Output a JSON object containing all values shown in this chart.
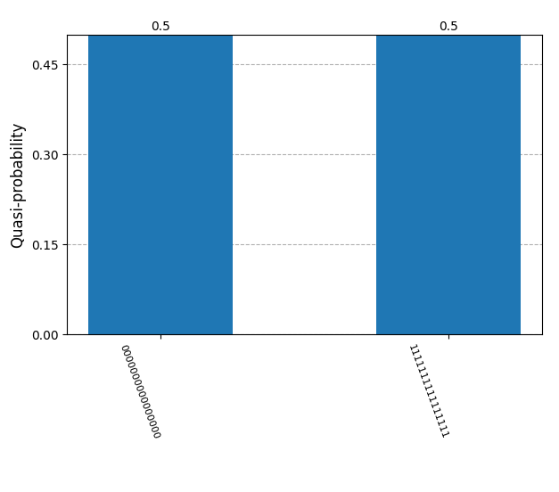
{
  "categories": [
    "0000000000000000",
    "1111111111111111"
  ],
  "values": [
    0.4999,
    0.4999
  ],
  "bar_labels": [
    "0.5",
    "0.5"
  ],
  "bar_color": "#1f77b4",
  "ylabel": "Quasi-probability",
  "ylim": [
    0,
    0.5
  ],
  "yticks": [
    0.0,
    0.15,
    0.3,
    0.45
  ],
  "grid": true,
  "grid_style": "--",
  "grid_color": "#b0b0b0",
  "bar_label_fontsize": 10,
  "ylabel_fontsize": 12,
  "tick_fontsize": 8,
  "xtick_rotation": -70,
  "top_spine": true,
  "right_spine": true
}
